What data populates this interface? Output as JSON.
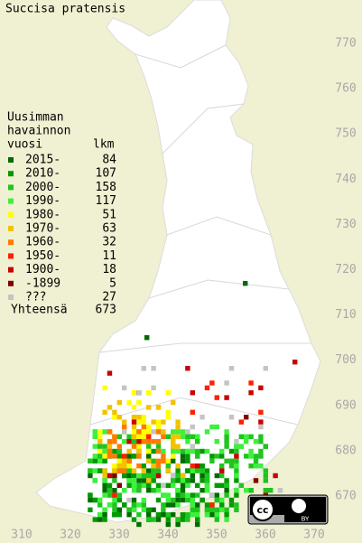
{
  "title": "Succisa pratensis",
  "legend": {
    "heading": [
      "Uusimman",
      "havainnon",
      "vuosi"
    ],
    "count_heading": "lkm",
    "items": [
      {
        "label": "2015-",
        "count": 84,
        "color": "#006c00"
      },
      {
        "label": "2010-",
        "count": 107,
        "color": "#009a00"
      },
      {
        "label": "2000-",
        "count": 158,
        "color": "#1fc41f"
      },
      {
        "label": "1990-",
        "count": 117,
        "color": "#3cf03c"
      },
      {
        "label": "1980-",
        "count": 51,
        "color": "#ffff00"
      },
      {
        "label": "1970-",
        "count": 63,
        "color": "#f2c200"
      },
      {
        "label": "1960-",
        "count": 32,
        "color": "#ff7a00"
      },
      {
        "label": "1950-",
        "count": 11,
        "color": "#ff2000"
      },
      {
        "label": "1900-",
        "count": 18,
        "color": "#c80000"
      },
      {
        "label": "-1899",
        "count": 5,
        "color": "#800000"
      },
      {
        "label": "???",
        "count": 27,
        "color": "#c4c4c4"
      }
    ],
    "total_label": "Yhteensä",
    "total": 673
  },
  "x_axis": [
    310,
    320,
    330,
    340,
    350,
    360,
    370
  ],
  "y_axis": [
    770,
    760,
    750,
    740,
    730,
    720,
    710,
    700,
    690,
    680,
    670
  ],
  "badge": "BY"
}
